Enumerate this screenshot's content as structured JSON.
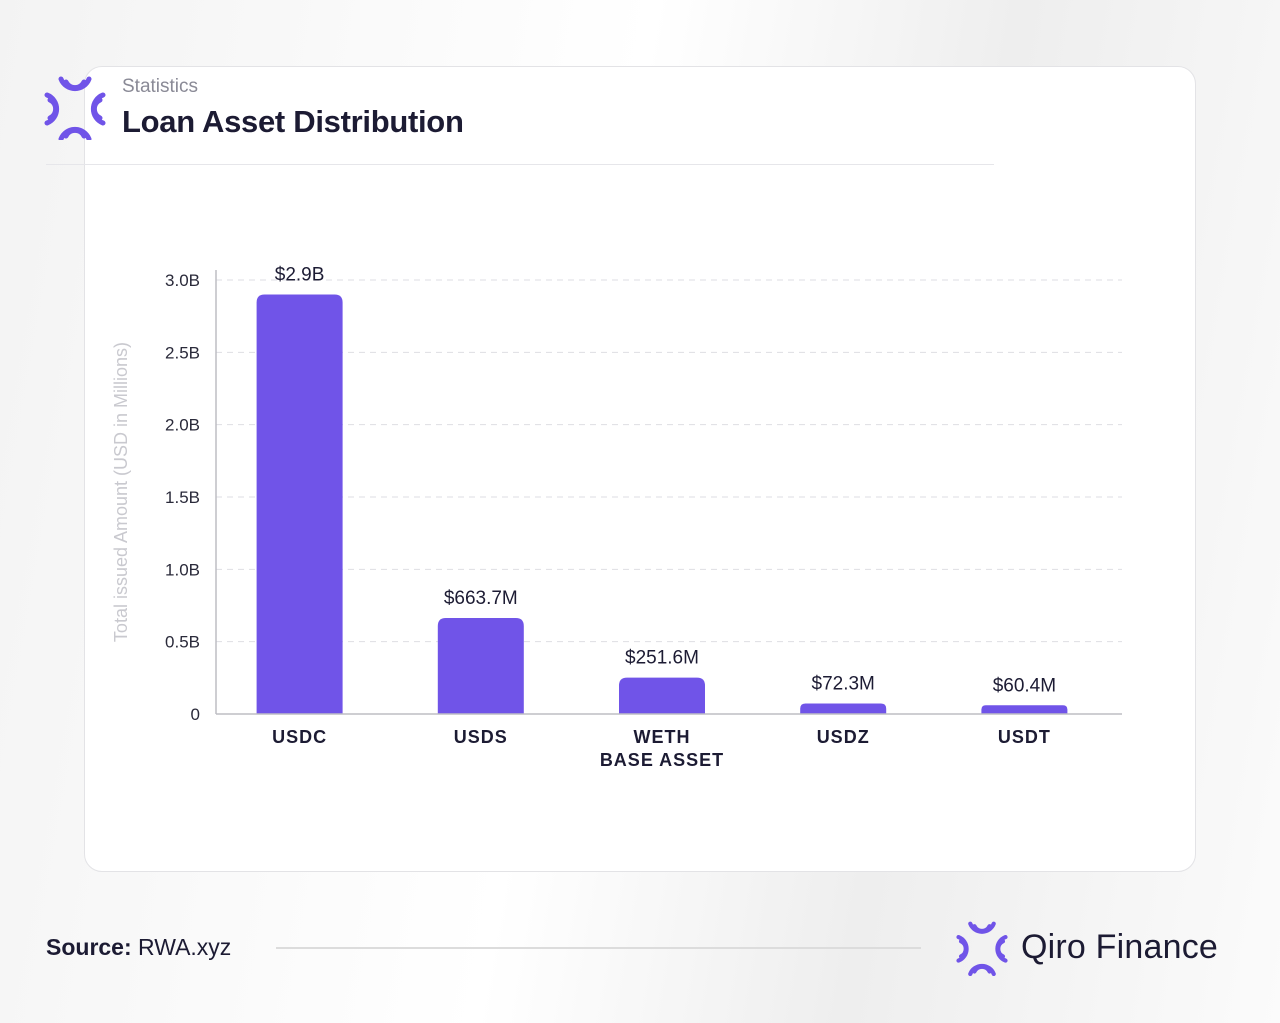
{
  "header": {
    "subtitle": "Statistics",
    "title": "Loan Asset Distribution"
  },
  "footer": {
    "source_label": "Source:",
    "source_value": "RWA.xyz",
    "brand_name": "Qiro Finance"
  },
  "colors": {
    "bar": "#7054e8",
    "title": "#1c1b33",
    "muted": "#8a8a96"
  },
  "icons": {
    "header_logo": "qiro-logo-icon",
    "footer_logo": "qiro-logo-icon"
  },
  "chart_data": {
    "type": "bar",
    "title": "",
    "xlabel": "",
    "ylabel": "Total issued Amount (USD in Millions)",
    "categories": [
      [
        "USDC"
      ],
      [
        "USDS"
      ],
      [
        "WETH",
        "BASE ASSET"
      ],
      [
        "USDZ"
      ],
      [
        "USDT"
      ]
    ],
    "values": [
      2900,
      663.7,
      251.6,
      72.3,
      60.4
    ],
    "data_labels": [
      "$2.9B",
      "$663.7M",
      "$251.6M",
      "$72.3M",
      "$60.4M"
    ],
    "yticks": [
      0,
      500,
      1000,
      1500,
      2000,
      2500,
      3000
    ],
    "ytick_labels": [
      "0",
      "0.5B",
      "1.0B",
      "1.5B",
      "2.0B",
      "2.5B",
      "3.0B"
    ],
    "ylim": [
      0,
      3000
    ],
    "grid": true
  }
}
